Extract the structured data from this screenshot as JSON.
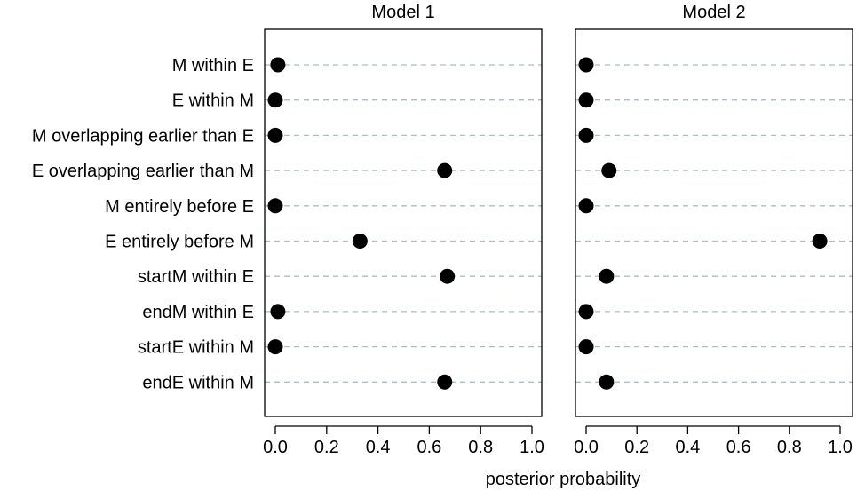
{
  "chart_data": [
    {
      "type": "dot",
      "title": "Model 1",
      "xlabel": "posterior probability",
      "xlim": [
        0,
        1
      ],
      "xticks": [
        "0.0",
        "0.2",
        "0.4",
        "0.6",
        "0.8",
        "1.0"
      ],
      "grid": "horizontal dashed guide lines",
      "categories": [
        "M within E",
        "E within M",
        "M overlapping earlier than E",
        "E overlapping earlier than M",
        "M entirely before E",
        "E entirely before M",
        "startM within E",
        "endM within E",
        "startE within M",
        "endE within M"
      ],
      "values": [
        0.01,
        0.0,
        0.0,
        0.66,
        0.0,
        0.33,
        0.67,
        0.01,
        0.0,
        0.66
      ]
    },
    {
      "type": "dot",
      "title": "Model 2",
      "xlabel": "posterior probability",
      "xlim": [
        0,
        1
      ],
      "xticks": [
        "0.0",
        "0.2",
        "0.4",
        "0.6",
        "0.8",
        "1.0"
      ],
      "grid": "horizontal dashed guide lines",
      "categories": [
        "M within E",
        "E within M",
        "M overlapping earlier than E",
        "E overlapping earlier than M",
        "M entirely before E",
        "E entirely before M",
        "startM within E",
        "endM within E",
        "startE within M",
        "endE within M"
      ],
      "values": [
        0.0,
        0.0,
        0.0,
        0.09,
        0.0,
        0.92,
        0.08,
        0.0,
        0.0,
        0.08
      ]
    }
  ],
  "colors": {
    "point": "#000000",
    "guide": "#a9bfc4",
    "frame": "#000000",
    "background": "#ffffff"
  }
}
